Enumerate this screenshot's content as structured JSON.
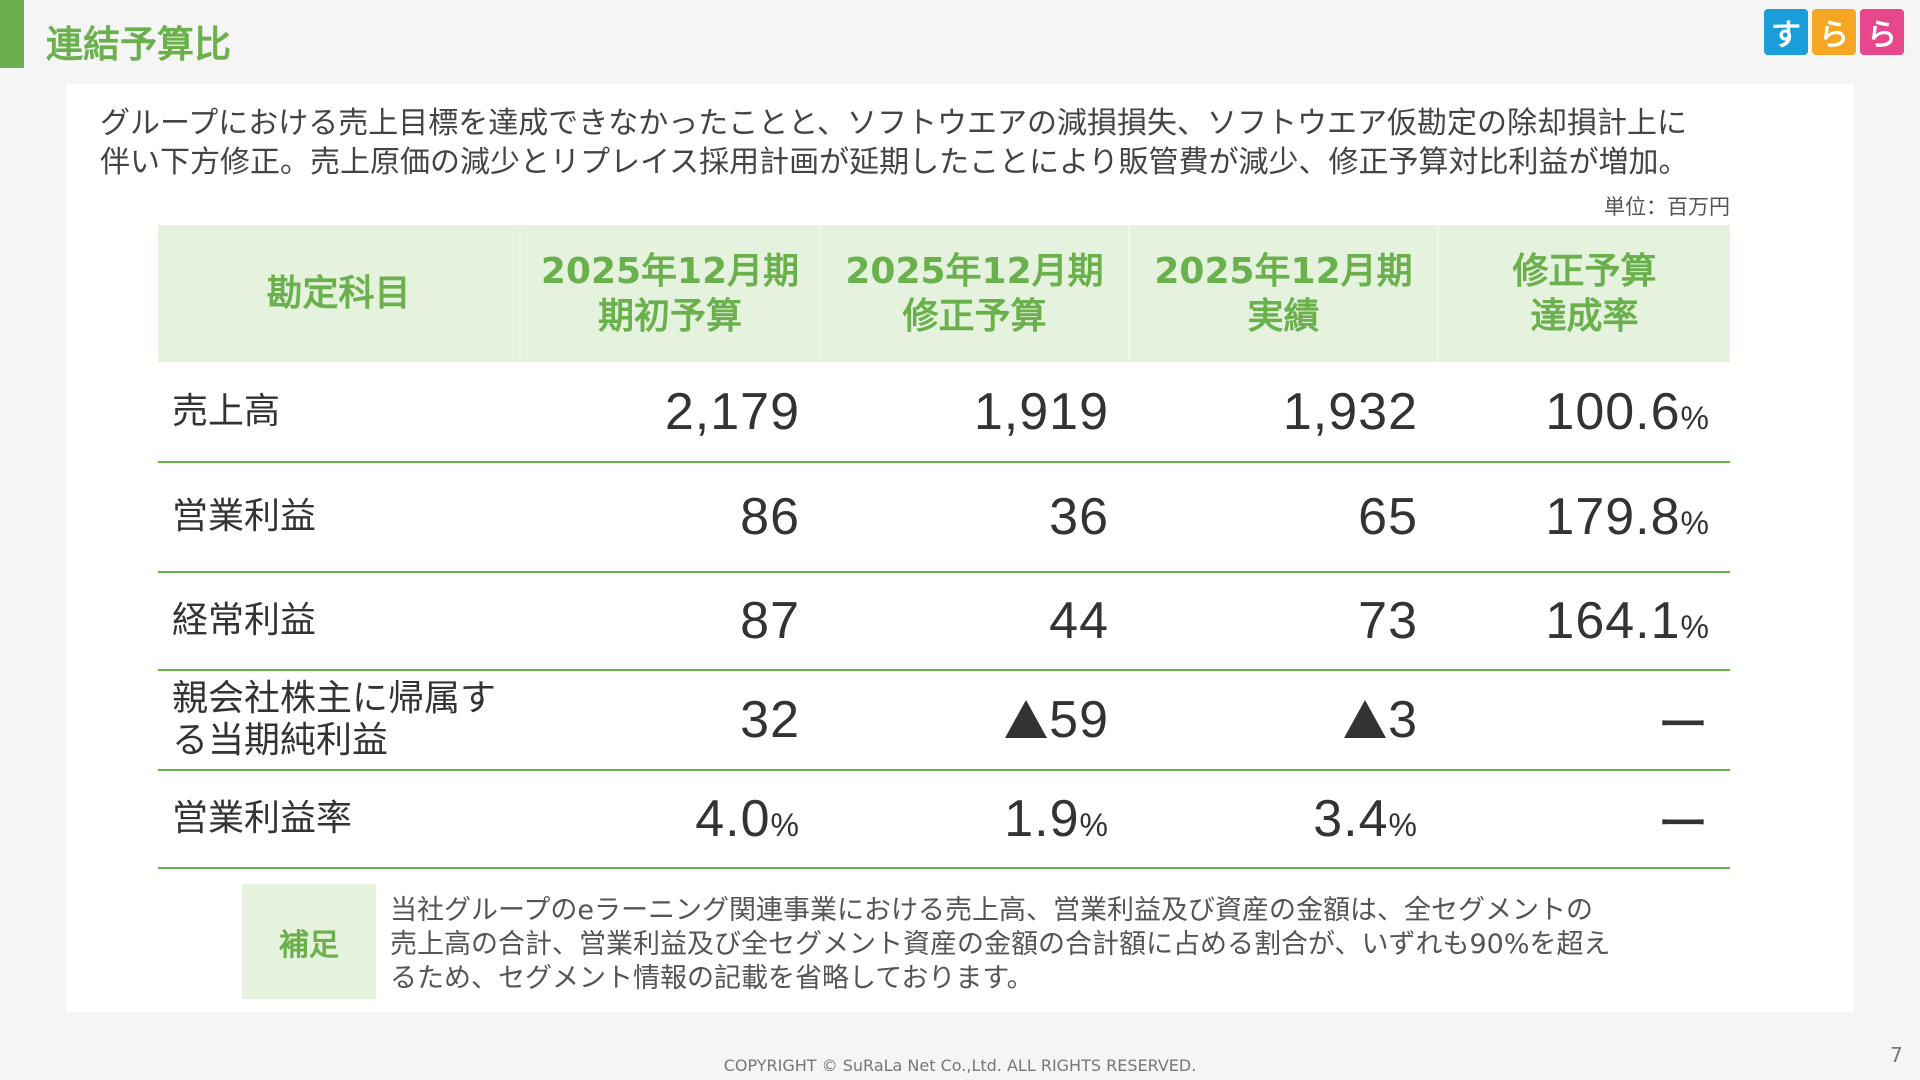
{
  "header": {
    "title": "連結予算比",
    "logo": [
      "す",
      "ら",
      "ら"
    ],
    "logo_colors": [
      "#1a9ed9",
      "#f5a623",
      "#e8478b"
    ]
  },
  "lead": {
    "line1": "グループにおける売上目標を達成できなかったことと、ソフトウエアの減損損失、ソフトウエア仮勘定の除却損計上に",
    "line2": "伴い下方修正。売上原価の減少とリプレイス採用計画が延期したことにより販管費が減少、修正予算対比利益が増加。"
  },
  "unit": "単位：百万円",
  "table": {
    "headers": [
      {
        "line1": "勘定科目",
        "line2": ""
      },
      {
        "line1": "2025年12月期",
        "line2": "期初予算"
      },
      {
        "line1": "2025年12月期",
        "line2": "修正予算"
      },
      {
        "line1": "2025年12月期",
        "line2": "実績"
      },
      {
        "line1": "修正予算",
        "line2": "達成率"
      }
    ],
    "rows": [
      {
        "label1": "売上高",
        "label2": "",
        "initial": "2,179",
        "revised": "1,919",
        "actual": "1,932",
        "rate": "100.6",
        "rate_unit": "%"
      },
      {
        "label1": "営業利益",
        "label2": "",
        "initial": "86",
        "revised": "36",
        "actual": "65",
        "rate": "179.8",
        "rate_unit": "%"
      },
      {
        "label1": "経常利益",
        "label2": "",
        "initial": "87",
        "revised": "44",
        "actual": "73",
        "rate": "164.1",
        "rate_unit": "%"
      },
      {
        "label1": "親会社株主に帰属す",
        "label2": "る当期純利益",
        "initial": "32",
        "revised": "59",
        "actual": "3",
        "rate": "ー",
        "rate_unit": ""
      },
      {
        "label1": "営業利益率",
        "label2": "",
        "initial": "4.0",
        "initial_unit": "%",
        "revised": "1.9",
        "revised_unit": "%",
        "actual": "3.4",
        "actual_unit": "%",
        "rate": "ー",
        "rate_unit": ""
      }
    ]
  },
  "note": {
    "label": "補足",
    "line1": "当社グループのeラーニング関連事業における売上高、営業利益及び資産の金額は、全セグメントの",
    "line2": "売上高の合計、営業利益及び全セグメント資産の金額の合計額に占める割合が、いずれも90%を超え",
    "line3": "るため、セグメント情報の記載を省略しております。"
  },
  "footer": {
    "copyright": "COPYRIGHT © SuRaLa Net Co.,Ltd. ALL RIGHTS RESERVED.",
    "page": "7"
  }
}
